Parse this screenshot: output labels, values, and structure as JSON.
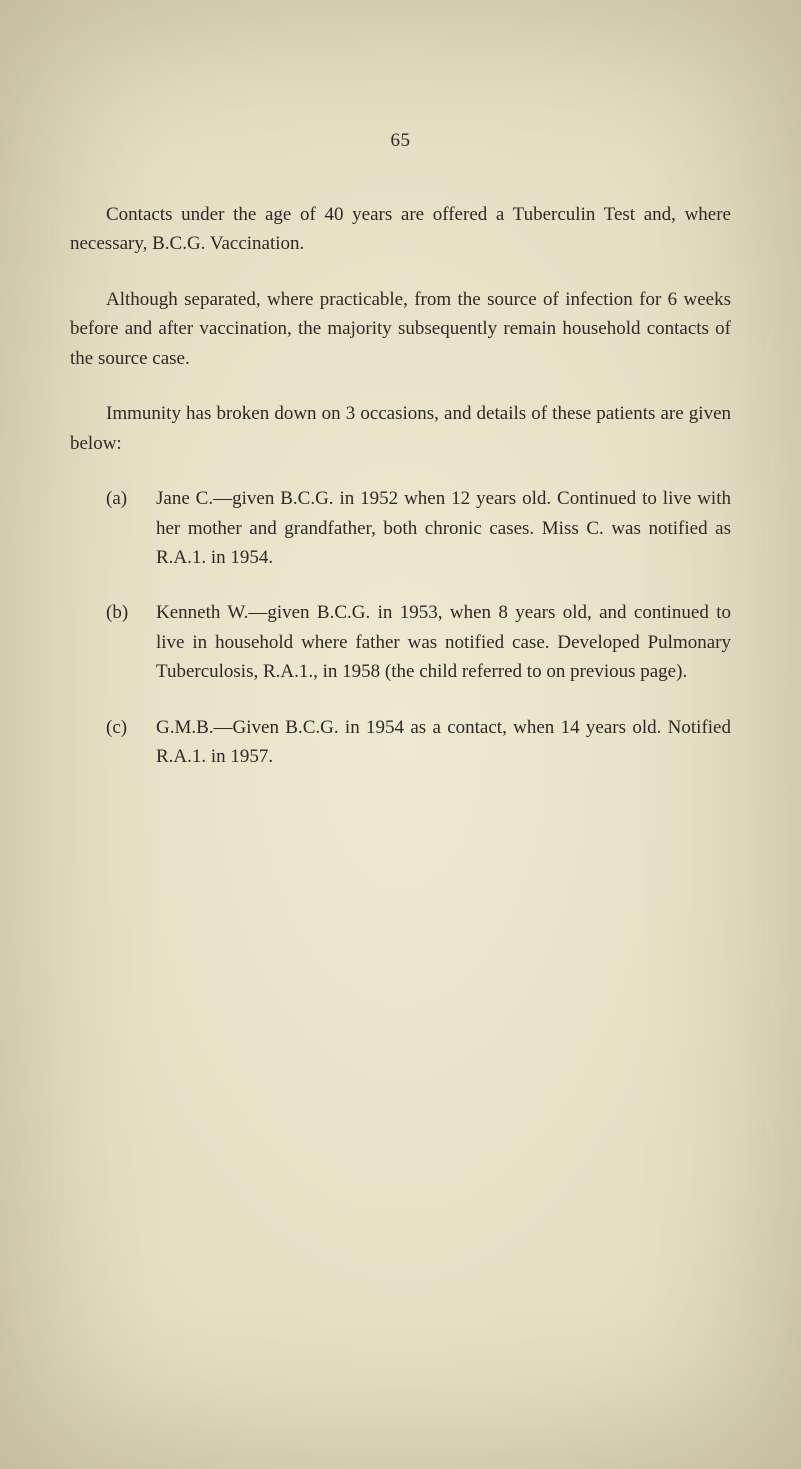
{
  "page_number": "65",
  "paragraphs": {
    "p1": "Contacts under the age of 40 years are offered a Tuberculin Test and, where necessary, B.C.G. Vaccination.",
    "p2": "Although separated, where practicable, from the source of infection for 6 weeks before and after vaccination, the majority subsequently remain household contacts of the source case.",
    "p3": "Immunity has broken down on 3 occasions, and details of these patients are given below:"
  },
  "list": {
    "a": {
      "label": "(a)",
      "text": "Jane C.—given B.C.G. in 1952 when 12 years old. Continued to live with her mother and grandfather, both chronic cases. Miss C. was notified as R.A.1. in 1954."
    },
    "b": {
      "label": "(b)",
      "text": "Kenneth W.—given B.C.G. in 1953, when 8 years old, and continued to live in household where father was notified case. Developed Pulmonary Tuberculosis, R.A.1., in 1958 (the child referred to on previous page)."
    },
    "c": {
      "label": "(c)",
      "text": "G.M.B.—Given B.C.G. in 1954 as a contact, when 14 years old. Notified R.A.1. in 1957."
    }
  },
  "colors": {
    "background": "#e8e2c8",
    "text": "#2a2a28"
  },
  "typography": {
    "body_fontsize_pt": 14,
    "font_family": "Georgia, Times New Roman, serif",
    "line_height": 1.55
  }
}
